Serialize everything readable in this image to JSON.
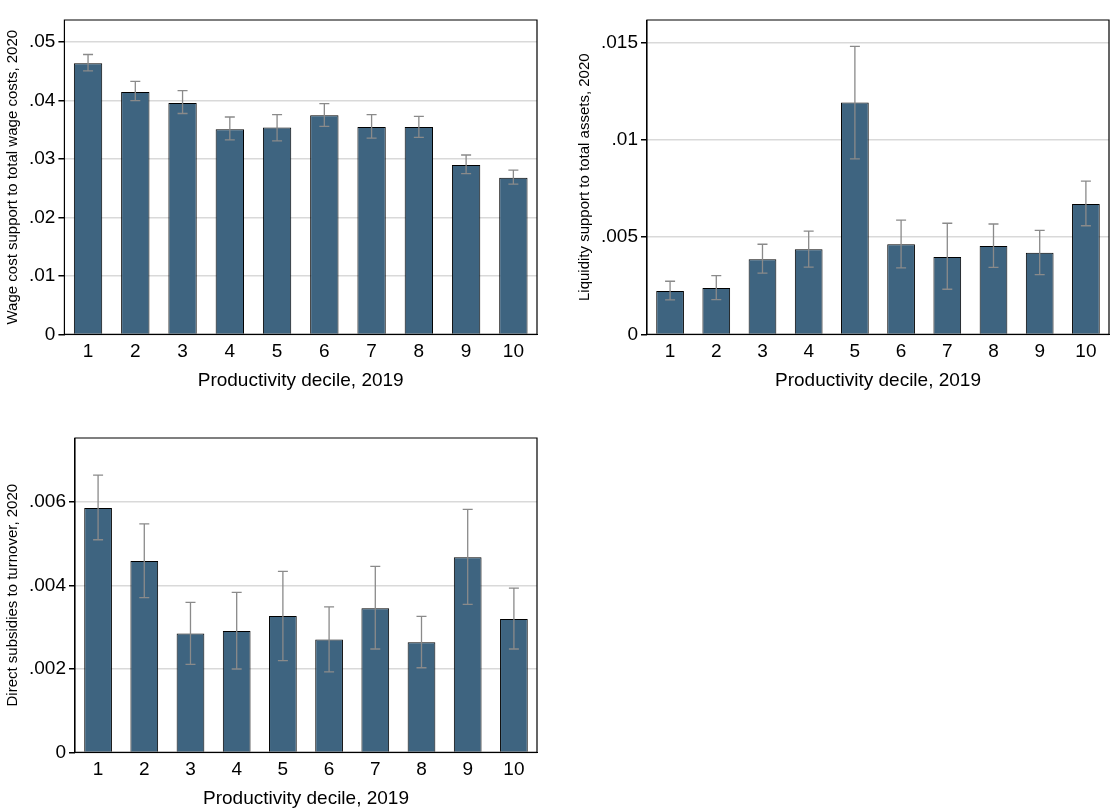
{
  "chart_data": [
    {
      "type": "bar",
      "xlabel": "Productivity decile, 2019",
      "ylabel": "Wage cost support to total wage costs, 2020",
      "categories": [
        "1",
        "2",
        "3",
        "4",
        "5",
        "6",
        "7",
        "8",
        "9",
        "10"
      ],
      "color": "#3e6480",
      "values": [
        0.0464,
        0.0415,
        0.0396,
        0.0351,
        0.0354,
        0.0375,
        0.0355,
        0.0355,
        0.029,
        0.0268
      ],
      "errors": [
        [
          0.0451,
          0.0479
        ],
        [
          0.04,
          0.0433
        ],
        [
          0.0378,
          0.0417
        ],
        [
          0.0333,
          0.0372
        ],
        [
          0.0331,
          0.0376
        ],
        [
          0.0356,
          0.0395
        ],
        [
          0.0336,
          0.0376
        ],
        [
          0.0337,
          0.0373
        ],
        [
          0.0275,
          0.0307
        ],
        [
          0.0257,
          0.0281
        ]
      ],
      "ylim": [
        0,
        0.0538
      ],
      "yticks": [
        {
          "value": 0,
          "label": "0"
        },
        {
          "value": 0.01,
          "label": ".01"
        },
        {
          "value": 0.02,
          "label": ".02"
        },
        {
          "value": 0.03,
          "label": ".03"
        },
        {
          "value": 0.04,
          "label": ".04"
        },
        {
          "value": 0.05,
          "label": ".05"
        }
      ],
      "grid": "y"
    },
    {
      "type": "bar",
      "xlabel": "Productivity decile, 2019",
      "ylabel": "Liquidity support to total assets, 2020",
      "categories": [
        "1",
        "2",
        "3",
        "4",
        "5",
        "6",
        "7",
        "8",
        "9",
        "10"
      ],
      "color": "#3e6480",
      "values": [
        0.00223,
        0.00238,
        0.00386,
        0.00437,
        0.01191,
        0.00463,
        0.00397,
        0.00454,
        0.00419,
        0.0067
      ],
      "errors": [
        [
          0.00177,
          0.00273
        ],
        [
          0.00179,
          0.00302
        ],
        [
          0.00315,
          0.00463
        ],
        [
          0.00346,
          0.0053
        ],
        [
          0.00902,
          0.0148
        ],
        [
          0.00342,
          0.00587
        ],
        [
          0.00232,
          0.00571
        ],
        [
          0.00344,
          0.00567
        ],
        [
          0.00307,
          0.00534
        ],
        [
          0.00558,
          0.00787
        ]
      ],
      "ylim": [
        0,
        0.01615
      ],
      "yticks": [
        {
          "value": 0,
          "label": "0"
        },
        {
          "value": 0.005,
          "label": ".005"
        },
        {
          "value": 0.01,
          "label": ".01"
        },
        {
          "value": 0.015,
          "label": ".015"
        }
      ],
      "grid": "y"
    },
    {
      "type": "bar",
      "xlabel": "Productivity decile, 2019",
      "ylabel": "Direct subsidies to turnover, 2020",
      "categories": [
        "1",
        "2",
        "3",
        "4",
        "5",
        "6",
        "7",
        "8",
        "9",
        "10"
      ],
      "color": "#3e6480",
      "values": [
        0.00586,
        0.00459,
        0.00285,
        0.00291,
        0.00327,
        0.00271,
        0.00346,
        0.00264,
        0.00468,
        0.0032
      ],
      "errors": [
        [
          0.0051,
          0.00665
        ],
        [
          0.00371,
          0.00548
        ],
        [
          0.00211,
          0.0036
        ],
        [
          0.002,
          0.00384
        ],
        [
          0.0022,
          0.00434
        ],
        [
          0.00193,
          0.00349
        ],
        [
          0.00248,
          0.00446
        ],
        [
          0.00203,
          0.00326
        ],
        [
          0.00355,
          0.00583
        ],
        [
          0.00248,
          0.00394
        ]
      ],
      "ylim": [
        0,
        0.00754
      ],
      "yticks": [
        {
          "value": 0,
          "label": "0"
        },
        {
          "value": 0.002,
          "label": ".002"
        },
        {
          "value": 0.004,
          "label": ".004"
        },
        {
          "value": 0.006,
          "label": ".006"
        }
      ],
      "grid": "y"
    }
  ]
}
